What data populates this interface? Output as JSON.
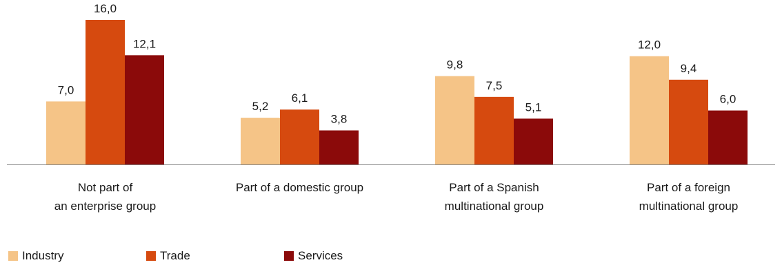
{
  "chart_data": {
    "type": "bar",
    "categories": [
      [
        "Not part of",
        "an enterprise group"
      ],
      [
        "Part of a domestic group"
      ],
      [
        "Part of a Spanish",
        "multinational group"
      ],
      [
        "Part of a foreign",
        "multinational group"
      ]
    ],
    "series": [
      {
        "name": "Industry",
        "color": "#f5c487",
        "values": [
          7.0,
          5.2,
          9.8,
          12.0
        ],
        "labels": [
          "7,0",
          "5,2",
          "9,8",
          "12,0"
        ]
      },
      {
        "name": "Trade",
        "color": "#d64a0f",
        "values": [
          16.0,
          6.1,
          7.5,
          9.4
        ],
        "labels": [
          "16,0",
          "6,1",
          "7,5",
          "9,4"
        ]
      },
      {
        "name": "Services",
        "color": "#8b0a0a",
        "values": [
          12.1,
          3.8,
          5.1,
          6.0
        ],
        "labels": [
          "12,1",
          "3,8",
          "5,1",
          "6,0"
        ]
      }
    ],
    "ylim": [
      0,
      16
    ],
    "grid": false,
    "legend": "bottom-left",
    "title": "",
    "xlabel": "",
    "ylabel": ""
  }
}
